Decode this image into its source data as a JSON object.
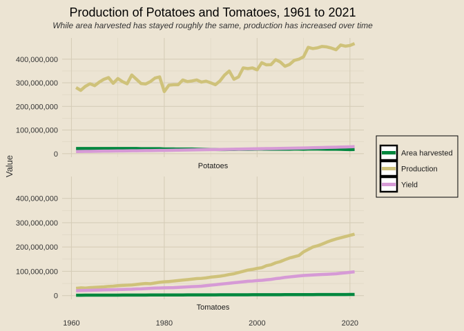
{
  "chart_data": {
    "type": "line",
    "title": "Production of Potatoes and Tomatoes, 1961 to 2021",
    "subtitle": "While area harvested has stayed roughly the same, production has increased over time",
    "ylabel": "Value",
    "xlim": [
      1958,
      2023
    ],
    "ylim": [
      -15000000,
      490000000
    ],
    "x_ticks": [
      1960,
      1980,
      2000,
      2020
    ],
    "x_tick_labels": [
      "1960",
      "1980",
      "2000",
      "2020"
    ],
    "y_ticks": [
      0,
      100000000,
      200000000,
      300000000,
      400000000
    ],
    "y_tick_labels": [
      "0",
      "100,000,000",
      "200,000,000",
      "300,000,000",
      "400,000,000"
    ],
    "grid": true,
    "legend": {
      "position": "right",
      "entries": [
        "Area harvested",
        "Production",
        "Yield"
      ]
    },
    "colors": {
      "Area harvested": "#00873e",
      "Production": "#cfc27a",
      "Yield": "#d69ad6"
    },
    "panels": [
      {
        "name": "Potatoes",
        "x": [
          1961,
          1962,
          1963,
          1964,
          1965,
          1966,
          1967,
          1968,
          1969,
          1970,
          1971,
          1972,
          1973,
          1974,
          1975,
          1976,
          1977,
          1978,
          1979,
          1980,
          1981,
          1982,
          1983,
          1984,
          1985,
          1986,
          1987,
          1988,
          1989,
          1990,
          1991,
          1992,
          1993,
          1994,
          1995,
          1996,
          1997,
          1998,
          1999,
          2000,
          2001,
          2002,
          2003,
          2004,
          2005,
          2006,
          2007,
          2008,
          2009,
          2010,
          2011,
          2012,
          2013,
          2014,
          2015,
          2016,
          2017,
          2018,
          2019,
          2020,
          2021
        ],
        "series": [
          {
            "name": "Area harvested",
            "values": [
              22000000,
              22000000,
              22000000,
              22000000,
              22000000,
              22000000,
              22000000,
              22000000,
              22000000,
              22000000,
              22000000,
              22000000,
              22000000,
              22000000,
              21000000,
              21000000,
              21000000,
              21000000,
              21000000,
              20000000,
              20000000,
              20000000,
              19500000,
              19500000,
              19500000,
              19500000,
              19000000,
              18700000,
              18200000,
              18000000,
              17800000,
              17500000,
              17500000,
              18000000,
              18000000,
              18500000,
              18500000,
              18500000,
              19000000,
              19500000,
              19500000,
              19300000,
              19000000,
              19000000,
              19000000,
              19000000,
              19000000,
              19500000,
              19500000,
              19000000,
              19500000,
              19500000,
              19500000,
              19300000,
              19100000,
              18900000,
              18800000,
              18700000,
              17800000,
              17500000,
              18000000
            ]
          },
          {
            "name": "Production",
            "values": [
              280000000,
              268000000,
              285000000,
              296000000,
              288000000,
              303000000,
              315000000,
              322000000,
              298000000,
              318000000,
              305000000,
              296000000,
              333000000,
              315000000,
              297000000,
              295000000,
              305000000,
              320000000,
              325000000,
              263000000,
              290000000,
              292000000,
              292000000,
              312000000,
              305000000,
              308000000,
              312000000,
              303000000,
              307000000,
              300000000,
              292000000,
              308000000,
              333000000,
              350000000,
              315000000,
              325000000,
              363000000,
              360000000,
              363000000,
              355000000,
              385000000,
              376000000,
              377000000,
              398000000,
              388000000,
              370000000,
              378000000,
              395000000,
              400000000,
              410000000,
              450000000,
              445000000,
              448000000,
              454000000,
              452000000,
              447000000,
              440000000,
              460000000,
              455000000,
              458000000,
              466000000
            ]
          },
          {
            "name": "Yield",
            "values": [
              9000000,
              9500000,
              9800000,
              10000000,
              10200000,
              10500000,
              10800000,
              11000000,
              11200000,
              11500000,
              11800000,
              12000000,
              12300000,
              12500000,
              12800000,
              13000000,
              13200000,
              13500000,
              13800000,
              14000000,
              14300000,
              14600000,
              15000000,
              15300000,
              15600000,
              16000000,
              16300000,
              16600000,
              17000000,
              17300000,
              17600000,
              18000000,
              18300000,
              18600000,
              19000000,
              19300000,
              19600000,
              20000000,
              20300000,
              20600000,
              21000000,
              21300000,
              21600000,
              22000000,
              22300000,
              22600000,
              23000000,
              23300000,
              23600000,
              24000000,
              24500000,
              25000000,
              25500000,
              26000000,
              26500000,
              27000000,
              27500000,
              28000000,
              28500000,
              29000000,
              30000000
            ]
          }
        ]
      },
      {
        "name": "Tomatoes",
        "x": [
          1961,
          1962,
          1963,
          1964,
          1965,
          1966,
          1967,
          1968,
          1969,
          1970,
          1971,
          1972,
          1973,
          1974,
          1975,
          1976,
          1977,
          1978,
          1979,
          1980,
          1981,
          1982,
          1983,
          1984,
          1985,
          1986,
          1987,
          1988,
          1989,
          1990,
          1991,
          1992,
          1993,
          1994,
          1995,
          1996,
          1997,
          1998,
          1999,
          2000,
          2001,
          2002,
          2003,
          2004,
          2005,
          2006,
          2007,
          2008,
          2009,
          2010,
          2011,
          2012,
          2013,
          2014,
          2015,
          2016,
          2017,
          2018,
          2019,
          2020,
          2021
        ],
        "series": [
          {
            "name": "Area harvested",
            "values": [
              1700000,
              1800000,
              1850000,
              1900000,
              1950000,
              2000000,
              2050000,
              2100000,
              2150000,
              2200000,
              2250000,
              2300000,
              2350000,
              2400000,
              2450000,
              2500000,
              2550000,
              2600000,
              2650000,
              2700000,
              2750000,
              2800000,
              2850000,
              2900000,
              2950000,
              3000000,
              3050000,
              3100000,
              3150000,
              3200000,
              3250000,
              3300000,
              3350000,
              3400000,
              3450000,
              3500000,
              3550000,
              3600000,
              3650000,
              3700000,
              3750000,
              3800000,
              3850000,
              3900000,
              3950000,
              4000000,
              4050000,
              4100000,
              4150000,
              4200000,
              4250000,
              4300000,
              4350000,
              4400000,
              4450000,
              4500000,
              4550000,
              4600000,
              4650000,
              4700000,
              5000000
            ]
          },
          {
            "name": "Production",
            "values": [
              30000000,
              32000000,
              31000000,
              33000000,
              34000000,
              35000000,
              36000000,
              38000000,
              39000000,
              41000000,
              42000000,
              43000000,
              44000000,
              46000000,
              48000000,
              50000000,
              49000000,
              52000000,
              55000000,
              57000000,
              58000000,
              60000000,
              62000000,
              64000000,
              66000000,
              68000000,
              70000000,
              71000000,
              73000000,
              76000000,
              78000000,
              80000000,
              83000000,
              87000000,
              90000000,
              95000000,
              100000000,
              105000000,
              108000000,
              112000000,
              115000000,
              123000000,
              127000000,
              135000000,
              140000000,
              148000000,
              155000000,
              160000000,
              165000000,
              180000000,
              190000000,
              200000000,
              205000000,
              212000000,
              220000000,
              227000000,
              233000000,
              238000000,
              243000000,
              248000000,
              253000000
            ]
          },
          {
            "name": "Yield",
            "values": [
              20000000,
              21000000,
              21500000,
              22000000,
              22500000,
              23000000,
              23500000,
              24000000,
              24500000,
              25000000,
              25500000,
              26000000,
              26500000,
              27500000,
              28000000,
              29000000,
              30000000,
              31000000,
              31500000,
              32000000,
              32500000,
              33000000,
              34000000,
              35000000,
              36000000,
              37000000,
              38000000,
              39000000,
              41000000,
              43000000,
              45000000,
              47000000,
              49000000,
              51000000,
              53000000,
              55000000,
              57000000,
              59000000,
              60000000,
              62000000,
              63000000,
              65000000,
              67000000,
              70000000,
              72000000,
              75000000,
              77000000,
              79000000,
              81000000,
              83000000,
              84000000,
              85000000,
              86000000,
              87000000,
              88000000,
              89000000,
              90000000,
              92000000,
              94000000,
              96000000,
              98000000
            ]
          }
        ]
      }
    ]
  }
}
